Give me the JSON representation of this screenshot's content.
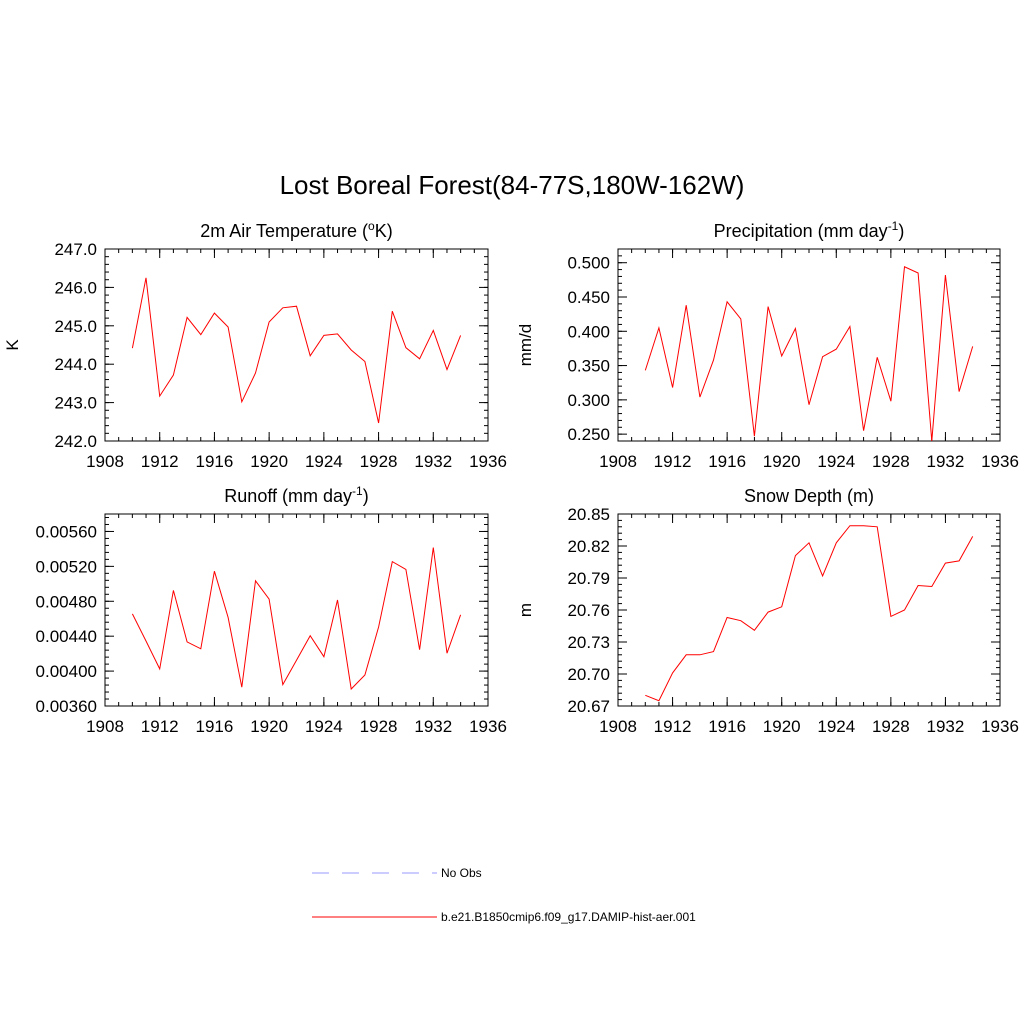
{
  "title": "Lost Boreal Forest(84-77S,180W-162W)",
  "colors": {
    "series": "#ff0000",
    "obs": "#9a9aff",
    "axis": "#000000"
  },
  "legend": [
    {
      "label": "No Obs",
      "style": "dashed",
      "color": "#9a9aff"
    },
    {
      "label": "b.e21.B1850cmip6.f09_g17.DAMIP-hist-aer.001",
      "style": "solid",
      "color": "#ff0000"
    }
  ],
  "chart_data": [
    {
      "type": "line",
      "title": "2m Air Temperature (",
      "title_sup": "o",
      "title_post": "K)",
      "xlabel": "",
      "ylabel": "K",
      "xlim": [
        1908,
        1936
      ],
      "ylim": [
        242.0,
        247.0
      ],
      "xticks": [
        1908,
        1912,
        1916,
        1920,
        1924,
        1928,
        1932,
        1936
      ],
      "yticks": [
        "242.0",
        "243.0",
        "244.0",
        "245.0",
        "246.0",
        "247.0"
      ],
      "series": [
        {
          "x": [
            1910,
            1911,
            1912,
            1913,
            1914,
            1915,
            1916,
            1917,
            1918,
            1919,
            1920,
            1921,
            1922,
            1923,
            1924,
            1925,
            1926,
            1927,
            1928,
            1929,
            1930,
            1931,
            1932,
            1933,
            1934
          ],
          "values": [
            244.42,
            246.25,
            243.17,
            243.72,
            245.22,
            244.77,
            245.33,
            244.97,
            243.02,
            243.77,
            245.1,
            245.47,
            245.51,
            244.22,
            244.75,
            244.79,
            244.37,
            244.07,
            242.47,
            245.38,
            244.43,
            244.14,
            244.88,
            243.86,
            244.75
          ]
        }
      ]
    },
    {
      "type": "line",
      "title": "Precipitation (mm day",
      "title_sup": "-1",
      "title_post": ")",
      "xlabel": "",
      "ylabel": "mm/d",
      "xlim": [
        1908,
        1936
      ],
      "ylim": [
        0.24,
        0.52
      ],
      "xticks": [
        1908,
        1912,
        1916,
        1920,
        1924,
        1928,
        1932,
        1936
      ],
      "yticks": [
        "0.250",
        "0.300",
        "0.350",
        "0.400",
        "0.450",
        "0.500"
      ],
      "series": [
        {
          "x": [
            1910,
            1911,
            1912,
            1913,
            1914,
            1915,
            1916,
            1917,
            1918,
            1919,
            1920,
            1921,
            1922,
            1923,
            1924,
            1925,
            1926,
            1927,
            1928,
            1929,
            1930,
            1931,
            1932,
            1933,
            1934
          ],
          "values": [
            0.343,
            0.405,
            0.318,
            0.438,
            0.304,
            0.358,
            0.443,
            0.418,
            0.247,
            0.436,
            0.364,
            0.404,
            0.293,
            0.363,
            0.374,
            0.407,
            0.255,
            0.362,
            0.298,
            0.494,
            0.485,
            0.24,
            0.482,
            0.312,
            0.378
          ]
        }
      ]
    },
    {
      "type": "line",
      "title": "Runoff (mm day",
      "title_sup": "-1",
      "title_post": ")",
      "xlabel": "",
      "ylabel": "",
      "xlim": [
        1908,
        1936
      ],
      "ylim": [
        0.0036,
        0.0058
      ],
      "xticks": [
        1908,
        1912,
        1916,
        1920,
        1924,
        1928,
        1932,
        1936
      ],
      "yticks": [
        "0.00360",
        "0.00400",
        "0.00440",
        "0.00480",
        "0.00520",
        "0.00560"
      ],
      "series": [
        {
          "x": [
            1910,
            1911,
            1912,
            1913,
            1914,
            1915,
            1916,
            1917,
            1918,
            1919,
            1920,
            1921,
            1922,
            1923,
            1924,
            1925,
            1926,
            1927,
            1928,
            1929,
            1930,
            1931,
            1932,
            1933,
            1934
          ],
          "values": [
            0.004655,
            0.004345,
            0.004025,
            0.004925,
            0.004335,
            0.004255,
            0.005145,
            0.004615,
            0.003815,
            0.005035,
            0.004825,
            0.003845,
            0.004125,
            0.004405,
            0.004165,
            0.004815,
            0.003795,
            0.003955,
            0.004505,
            0.005255,
            0.005165,
            0.004245,
            0.005415,
            0.004205,
            0.004645
          ]
        }
      ]
    },
    {
      "type": "line",
      "title": "Snow Depth (m)",
      "title_sup": "",
      "title_post": "",
      "xlabel": "",
      "ylabel": "m",
      "xlim": [
        1908,
        1936
      ],
      "ylim": [
        20.67,
        20.85
      ],
      "xticks": [
        1908,
        1912,
        1916,
        1920,
        1924,
        1928,
        1932,
        1936
      ],
      "yticks": [
        "20.67",
        "20.70",
        "20.73",
        "20.76",
        "20.79",
        "20.82",
        "20.85"
      ],
      "series": [
        {
          "x": [
            1910,
            1911,
            1912,
            1913,
            1914,
            1915,
            1916,
            1917,
            1918,
            1919,
            1920,
            1921,
            1922,
            1923,
            1924,
            1925,
            1926,
            1927,
            1928,
            1929,
            1930,
            1931,
            1932,
            1933,
            1934
          ],
          "values": [
            20.68,
            20.675,
            20.701,
            20.718,
            20.718,
            20.721,
            20.753,
            20.75,
            20.741,
            20.758,
            20.763,
            20.811,
            20.823,
            20.792,
            20.823,
            20.839,
            20.839,
            20.838,
            20.754,
            20.76,
            20.783,
            20.782,
            20.804,
            20.806,
            20.829
          ]
        }
      ]
    }
  ]
}
